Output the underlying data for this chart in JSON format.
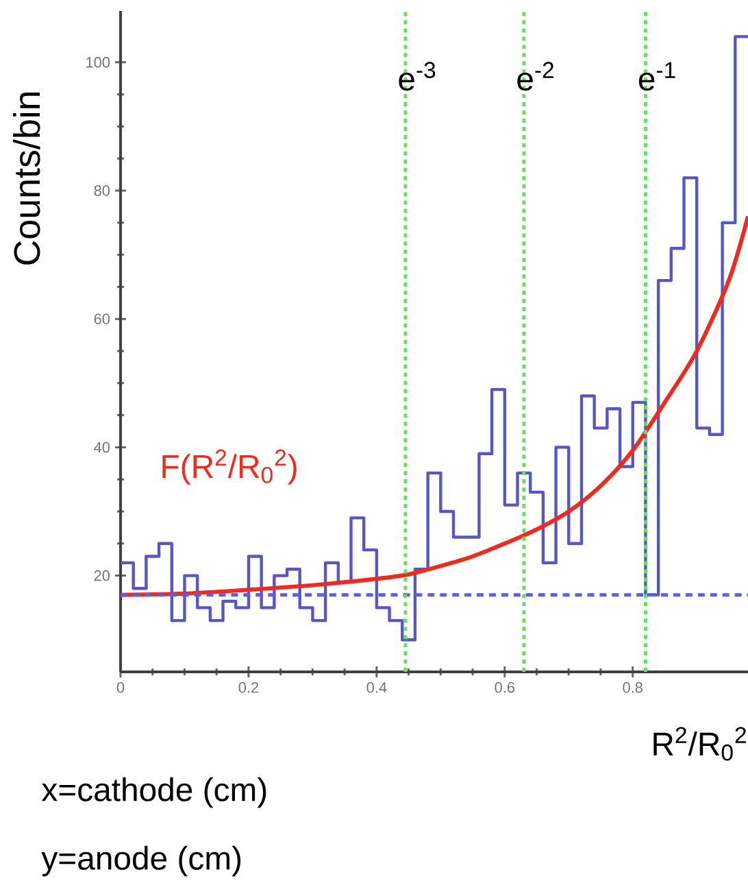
{
  "chart_data": {
    "type": "histogram",
    "ylabel": "Counts/bin",
    "xlabel": "R$^{2}$/R$_{0}$$^{2}$",
    "bins": [
      0,
      0.02,
      0.04,
      0.06,
      0.08,
      0.1,
      0.12,
      0.14,
      0.16,
      0.18,
      0.2,
      0.22,
      0.24,
      0.26,
      0.28,
      0.3,
      0.32,
      0.34,
      0.36,
      0.38,
      0.4,
      0.42,
      0.44,
      0.46,
      0.48,
      0.5,
      0.52,
      0.54,
      0.56,
      0.58,
      0.6,
      0.62,
      0.64,
      0.66,
      0.68,
      0.7,
      0.72,
      0.74,
      0.76,
      0.78,
      0.8,
      0.82,
      0.84,
      0.86,
      0.88,
      0.9,
      0.92,
      0.94,
      0.96,
      0.98
    ],
    "series": [
      {
        "color": "#5656c8",
        "values": [
          22,
          18,
          23,
          25,
          13,
          20,
          15,
          13,
          16,
          15,
          23,
          15,
          20,
          21,
          15,
          13,
          22,
          19,
          29,
          24,
          15,
          13,
          10,
          21,
          36,
          30,
          26,
          26,
          39,
          49,
          31,
          36,
          33,
          22,
          40,
          25,
          48,
          43,
          46,
          37,
          47,
          17,
          66,
          71,
          82,
          43,
          42,
          75,
          104
        ]
      },
      {
        "type": "line",
        "name": "F(R$^{2}$/R$_{0}$$^{2}$)",
        "color": "#f22a1e",
        "x": [
          0,
          0.1,
          0.2,
          0.3,
          0.4,
          0.45,
          0.5,
          0.55,
          0.6,
          0.65,
          0.7,
          0.75,
          0.8,
          0.85,
          0.9,
          0.95,
          0.98
        ],
        "values": [
          17,
          17.2,
          17.8,
          18.5,
          19.5,
          20.2,
          21.5,
          23,
          25,
          27.2,
          30,
          34,
          39.5,
          47,
          55,
          66,
          76
        ]
      }
    ],
    "xlim": [
      0,
      0.98
    ],
    "ylim": [
      5,
      108
    ],
    "xticks": [
      0,
      0.2,
      0.4,
      0.6,
      0.8
    ],
    "yticks": [
      20,
      40,
      60,
      80,
      100
    ],
    "ref_lines": [
      {
        "axis": "y",
        "value": 17,
        "color": "#5a5aff",
        "line_style": "dashed"
      },
      {
        "axis": "x",
        "value": 0.445,
        "label": "e$^{-3}$",
        "color": "#66e060",
        "line_style": "dotted"
      },
      {
        "axis": "x",
        "value": 0.63,
        "label": "e$^{-2}$",
        "color": "#66e060",
        "line_style": "dotted"
      },
      {
        "axis": "x",
        "value": 0.82,
        "label": "e$^{-1}$",
        "color": "#66e060",
        "line_style": "dotted"
      }
    ],
    "annotations": [
      "x=cathode (cm)",
      "y=anode (cm)"
    ],
    "grid": false
  }
}
